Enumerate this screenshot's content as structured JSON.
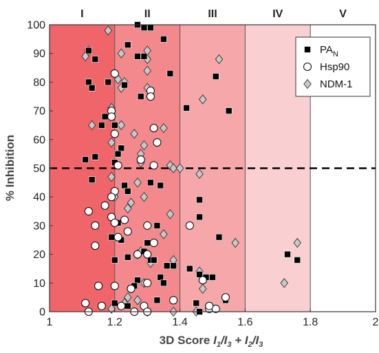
{
  "chart_data": {
    "type": "scatter",
    "xlabel": {
      "prefix": "3D Score ",
      "t1": "I",
      "s1": "1",
      "t2": "/I",
      "s2": "3",
      "t3": " + I",
      "s3": "2",
      "t4": "/I",
      "s4": "3"
    },
    "ylabel": "% Inhibition",
    "xlim": [
      1,
      2
    ],
    "ylim": [
      0,
      100
    ],
    "xticks": [
      "1",
      "1.2",
      "1.4",
      "1.6",
      "1.8",
      "2"
    ],
    "yticks": [
      "0",
      "10",
      "20",
      "30",
      "40",
      "50",
      "60",
      "70",
      "80",
      "90",
      "100"
    ],
    "threshold_y": 50,
    "regions": [
      {
        "label": "I",
        "x0": 1.0,
        "x1": 1.2,
        "color": "#f0656a"
      },
      {
        "label": "II",
        "x0": 1.2,
        "x1": 1.4,
        "color": "#f3898c"
      },
      {
        "label": "III",
        "x0": 1.4,
        "x1": 1.6,
        "color": "#f5a7aa"
      },
      {
        "label": "IV",
        "x0": 1.6,
        "x1": 1.8,
        "color": "#f9cfd1"
      },
      {
        "label": "V",
        "x0": 1.8,
        "x1": 2.0,
        "color": "#ffffff"
      }
    ],
    "series": [
      {
        "name": "PA",
        "name_sub": "N",
        "marker": "square",
        "color": "#000000",
        "points": [
          [
            1.27,
            100
          ],
          [
            1.29,
            99
          ],
          [
            1.31,
            99
          ],
          [
            1.35,
            95
          ],
          [
            1.24,
            93
          ],
          [
            1.12,
            91
          ],
          [
            1.27,
            89
          ],
          [
            1.29,
            89
          ],
          [
            1.14,
            88
          ],
          [
            1.18,
            80
          ],
          [
            1.12,
            80
          ],
          [
            1.23,
            79
          ],
          [
            1.37,
            83
          ],
          [
            1.51,
            82
          ],
          [
            1.13,
            78
          ],
          [
            1.28,
            75
          ],
          [
            1.2,
            65
          ],
          [
            1.17,
            68
          ],
          [
            1.16,
            65
          ],
          [
            1.42,
            71
          ],
          [
            1.55,
            70
          ],
          [
            1.22,
            57
          ],
          [
            1.21,
            55
          ],
          [
            1.11,
            53
          ],
          [
            1.14,
            54
          ],
          [
            1.2,
            52
          ],
          [
            1.31,
            45
          ],
          [
            1.34,
            44
          ],
          [
            1.23,
            44
          ],
          [
            1.13,
            46
          ],
          [
            1.24,
            42
          ],
          [
            1.46,
            39
          ],
          [
            1.21,
            31
          ],
          [
            1.3,
            30
          ],
          [
            1.33,
            30
          ],
          [
            1.46,
            33
          ],
          [
            1.19,
            26
          ],
          [
            1.22,
            25
          ],
          [
            1.52,
            26
          ],
          [
            1.3,
            24
          ],
          [
            1.2,
            18
          ],
          [
            1.24,
            19
          ],
          [
            1.31,
            18
          ],
          [
            1.29,
            21
          ],
          [
            1.43,
            15
          ],
          [
            1.36,
            16
          ],
          [
            1.38,
            16
          ],
          [
            1.73,
            20
          ],
          [
            1.76,
            18
          ],
          [
            1.32,
            18
          ],
          [
            1.27,
            11
          ],
          [
            1.34,
            12
          ],
          [
            1.46,
            13
          ],
          [
            1.48,
            12
          ],
          [
            1.5,
            12
          ],
          [
            1.26,
            9
          ],
          [
            1.35,
            10
          ],
          [
            1.33,
            4
          ],
          [
            1.2,
            3
          ],
          [
            1.45,
            3
          ],
          [
            1.54,
            4
          ],
          [
            1.24,
            2
          ],
          [
            1.46,
            0
          ]
        ]
      },
      {
        "name": "Hsp90",
        "marker": "circle",
        "color": "#ffffff",
        "points": [
          [
            1.2,
            83
          ],
          [
            1.31,
            77
          ],
          [
            1.31,
            75
          ],
          [
            1.19,
            70
          ],
          [
            1.19,
            68
          ],
          [
            1.2,
            62
          ],
          [
            1.32,
            64
          ],
          [
            1.33,
            59
          ],
          [
            1.28,
            53
          ],
          [
            1.32,
            51
          ],
          [
            1.21,
            51
          ],
          [
            1.2,
            42
          ],
          [
            1.19,
            40
          ],
          [
            1.17,
            37
          ],
          [
            1.12,
            35
          ],
          [
            1.19,
            33
          ],
          [
            1.14,
            30
          ],
          [
            1.3,
            30
          ],
          [
            1.23,
            32
          ],
          [
            1.2,
            31
          ],
          [
            1.24,
            28
          ],
          [
            1.14,
            23
          ],
          [
            1.21,
            26
          ],
          [
            1.32,
            24
          ],
          [
            1.27,
            20
          ],
          [
            1.3,
            20
          ],
          [
            1.43,
            30
          ],
          [
            1.15,
            9
          ],
          [
            1.2,
            9
          ],
          [
            1.25,
            8
          ],
          [
            1.3,
            10
          ],
          [
            1.47,
            11
          ],
          [
            1.11,
            3
          ],
          [
            1.16,
            2
          ],
          [
            1.22,
            2
          ],
          [
            1.29,
            2
          ],
          [
            1.12,
            0
          ],
          [
            1.38,
            4
          ],
          [
            1.49,
            1
          ],
          [
            1.51,
            1
          ],
          [
            1.54,
            5
          ],
          [
            1.49,
            2
          ],
          [
            1.26,
            0
          ],
          [
            1.3,
            0
          ]
        ]
      },
      {
        "name": "NDM-1",
        "marker": "diamond",
        "color": "#c8c8c8",
        "points": [
          [
            1.18,
            98
          ],
          [
            1.12,
            91
          ],
          [
            1.11,
            89
          ],
          [
            1.22,
            90
          ],
          [
            1.3,
            91
          ],
          [
            1.3,
            88
          ],
          [
            1.3,
            84
          ],
          [
            1.52,
            88
          ],
          [
            1.21,
            81
          ],
          [
            1.23,
            80
          ],
          [
            1.22,
            78
          ],
          [
            1.3,
            78
          ],
          [
            1.13,
            65
          ],
          [
            1.22,
            65
          ],
          [
            1.26,
            62
          ],
          [
            1.19,
            71
          ],
          [
            1.35,
            64
          ],
          [
            1.47,
            74
          ],
          [
            1.19,
            59
          ],
          [
            1.29,
            58
          ],
          [
            1.28,
            55
          ],
          [
            1.28,
            52
          ],
          [
            1.37,
            51
          ],
          [
            1.38,
            50
          ],
          [
            1.4,
            50
          ],
          [
            1.46,
            48
          ],
          [
            1.19,
            47
          ],
          [
            1.27,
            45
          ],
          [
            1.25,
            38
          ],
          [
            1.2,
            40
          ],
          [
            1.29,
            40
          ],
          [
            1.24,
            36
          ],
          [
            1.37,
            34
          ],
          [
            1.35,
            27
          ],
          [
            1.57,
            24
          ],
          [
            1.28,
            21
          ],
          [
            1.27,
            20
          ],
          [
            1.3,
            20
          ],
          [
            1.31,
            17
          ],
          [
            1.38,
            18
          ],
          [
            1.46,
            14
          ],
          [
            1.47,
            8
          ],
          [
            1.72,
            10
          ],
          [
            1.76,
            24
          ],
          [
            1.29,
            10
          ],
          [
            1.27,
            4
          ],
          [
            1.23,
            3
          ],
          [
            1.24,
            5
          ],
          [
            1.45,
            0
          ],
          [
            1.19,
            1
          ],
          [
            1.3,
            0
          ],
          [
            1.38,
            0
          ]
        ]
      }
    ],
    "legend_position": "top-right"
  }
}
